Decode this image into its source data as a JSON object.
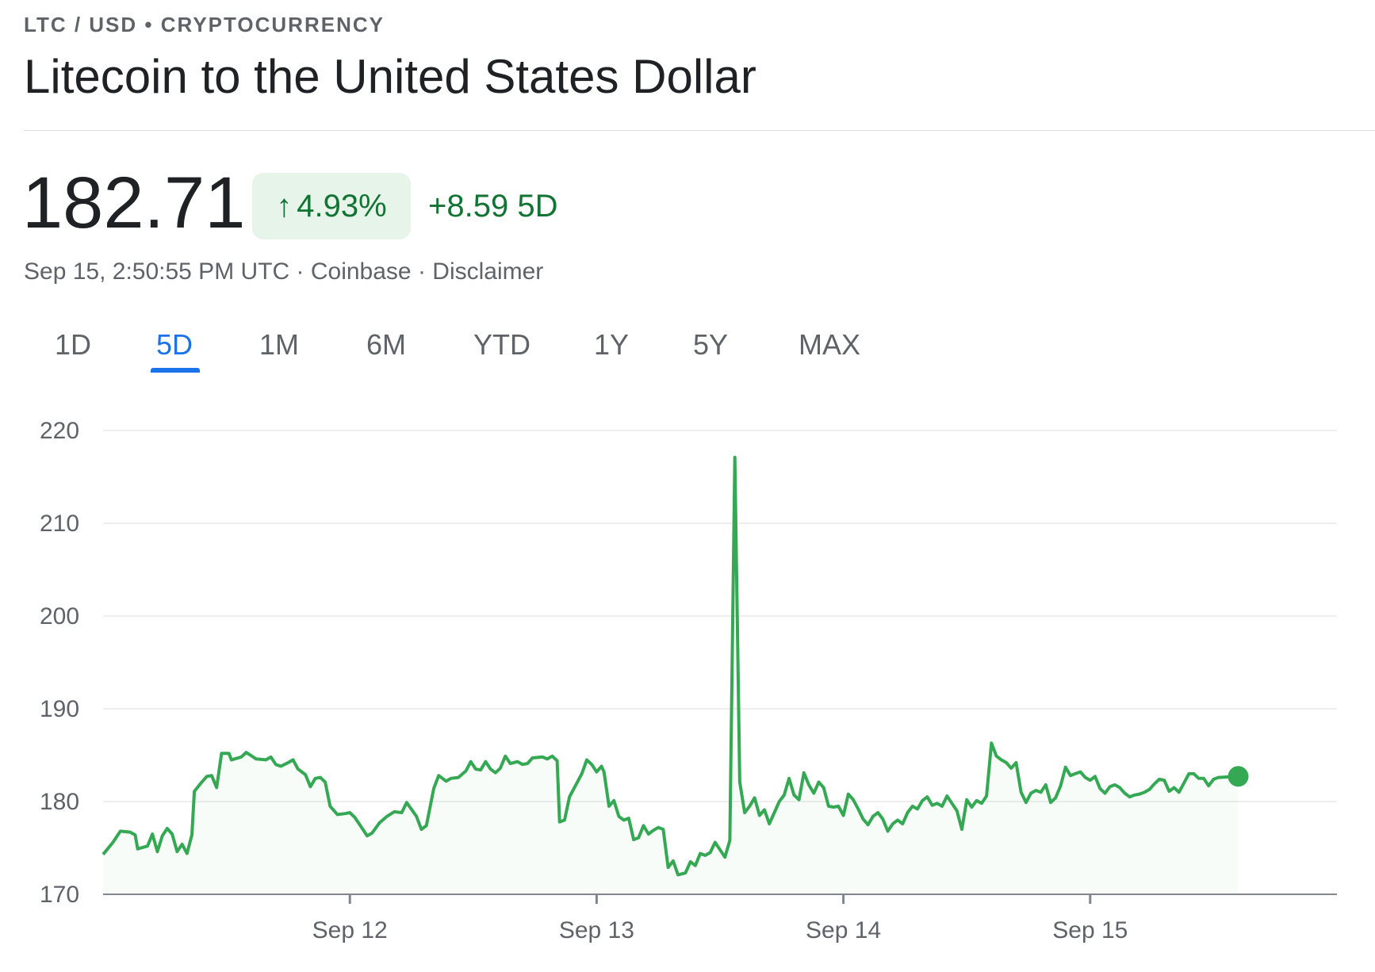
{
  "header": {
    "kicker": "LTC / USD • CRYPTOCURRENCY",
    "title": "Litecoin to the United States Dollar"
  },
  "quote": {
    "price": "182.71",
    "change_arrow": "↑",
    "change_percent": "4.93%",
    "change_abs": "+8.59 5D",
    "timestamp": "Sep 15, 2:50:55 PM UTC",
    "separator": " · ",
    "source": "Coinbase",
    "disclaimer": "Disclaimer"
  },
  "tabs": [
    "1D",
    "5D",
    "1M",
    "6M",
    "YTD",
    "1Y",
    "5Y",
    "MAX"
  ],
  "active_tab": "5D",
  "colors": {
    "line": "#34a853",
    "positive_text": "#137333",
    "pill_bg": "#e6f4ea",
    "active_tab": "#1a73e8",
    "grid": "#eeeeee"
  },
  "chart_data": {
    "type": "area",
    "title": "",
    "xlabel": "",
    "ylabel": "",
    "ylim": [
      170,
      220
    ],
    "yticks": [
      170,
      180,
      190,
      200,
      210,
      220
    ],
    "xlim": [
      0,
      5.0
    ],
    "xticks": [
      {
        "value": 1,
        "label": "Sep 12"
      },
      {
        "value": 2,
        "label": "Sep 13"
      },
      {
        "value": 3,
        "label": "Sep 14"
      },
      {
        "value": 4,
        "label": "Sep 15"
      }
    ],
    "grid": true,
    "series": [
      {
        "values": [
          [
            0.0,
            174.3
          ],
          [
            0.04,
            175.6
          ],
          [
            0.07,
            176.8
          ],
          [
            0.11,
            176.7
          ],
          [
            0.13,
            176.4
          ],
          [
            0.14,
            174.9
          ],
          [
            0.18,
            175.2
          ],
          [
            0.2,
            176.5
          ],
          [
            0.22,
            174.6
          ],
          [
            0.24,
            176.3
          ],
          [
            0.26,
            177.1
          ],
          [
            0.28,
            176.5
          ],
          [
            0.3,
            174.6
          ],
          [
            0.32,
            175.4
          ],
          [
            0.34,
            174.4
          ],
          [
            0.36,
            176.4
          ],
          [
            0.37,
            181.1
          ],
          [
            0.4,
            182.1
          ],
          [
            0.42,
            182.7
          ],
          [
            0.44,
            182.8
          ],
          [
            0.46,
            181.5
          ],
          [
            0.48,
            185.2
          ],
          [
            0.51,
            185.2
          ],
          [
            0.52,
            184.5
          ],
          [
            0.56,
            184.8
          ],
          [
            0.58,
            185.3
          ],
          [
            0.62,
            184.6
          ],
          [
            0.66,
            184.5
          ],
          [
            0.68,
            184.8
          ],
          [
            0.7,
            184.0
          ],
          [
            0.72,
            183.8
          ],
          [
            0.75,
            184.2
          ],
          [
            0.77,
            184.5
          ],
          [
            0.79,
            183.5
          ],
          [
            0.82,
            182.9
          ],
          [
            0.84,
            181.6
          ],
          [
            0.86,
            182.5
          ],
          [
            0.88,
            182.6
          ],
          [
            0.9,
            182.1
          ],
          [
            0.92,
            179.5
          ],
          [
            0.95,
            178.6
          ],
          [
            0.98,
            178.7
          ],
          [
            1.0,
            178.8
          ],
          [
            1.02,
            178.3
          ],
          [
            1.05,
            177.1
          ],
          [
            1.07,
            176.3
          ],
          [
            1.09,
            176.6
          ],
          [
            1.12,
            177.7
          ],
          [
            1.15,
            178.4
          ],
          [
            1.18,
            178.9
          ],
          [
            1.21,
            178.8
          ],
          [
            1.23,
            179.9
          ],
          [
            1.27,
            178.4
          ],
          [
            1.29,
            177.0
          ],
          [
            1.31,
            177.4
          ],
          [
            1.34,
            181.4
          ],
          [
            1.36,
            182.8
          ],
          [
            1.39,
            182.2
          ],
          [
            1.41,
            182.5
          ],
          [
            1.44,
            182.6
          ],
          [
            1.47,
            183.3
          ],
          [
            1.49,
            184.3
          ],
          [
            1.51,
            183.5
          ],
          [
            1.53,
            183.4
          ],
          [
            1.55,
            184.3
          ],
          [
            1.57,
            183.5
          ],
          [
            1.59,
            183.1
          ],
          [
            1.61,
            183.6
          ],
          [
            1.63,
            184.9
          ],
          [
            1.65,
            184.1
          ],
          [
            1.68,
            184.3
          ],
          [
            1.7,
            184.0
          ],
          [
            1.72,
            184.1
          ],
          [
            1.74,
            184.7
          ],
          [
            1.78,
            184.8
          ],
          [
            1.8,
            184.6
          ],
          [
            1.82,
            184.9
          ],
          [
            1.84,
            184.4
          ],
          [
            1.85,
            177.8
          ],
          [
            1.87,
            178.0
          ],
          [
            1.89,
            180.5
          ],
          [
            1.92,
            182.0
          ],
          [
            1.94,
            183.0
          ],
          [
            1.96,
            184.5
          ],
          [
            1.98,
            184.0
          ],
          [
            2.0,
            183.2
          ],
          [
            2.02,
            183.8
          ],
          [
            2.03,
            183.2
          ],
          [
            2.05,
            179.5
          ],
          [
            2.07,
            180.1
          ],
          [
            2.09,
            178.4
          ],
          [
            2.11,
            178.0
          ],
          [
            2.13,
            178.2
          ],
          [
            2.15,
            175.9
          ],
          [
            2.17,
            176.1
          ],
          [
            2.19,
            177.4
          ],
          [
            2.21,
            176.5
          ],
          [
            2.23,
            176.9
          ],
          [
            2.25,
            177.2
          ],
          [
            2.27,
            177.0
          ],
          [
            2.29,
            172.9
          ],
          [
            2.31,
            173.6
          ],
          [
            2.33,
            172.1
          ],
          [
            2.36,
            172.3
          ],
          [
            2.38,
            173.5
          ],
          [
            2.4,
            173.1
          ],
          [
            2.42,
            174.4
          ],
          [
            2.44,
            174.2
          ],
          [
            2.46,
            174.5
          ],
          [
            2.48,
            175.6
          ],
          [
            2.5,
            174.8
          ],
          [
            2.52,
            174.0
          ],
          [
            2.54,
            175.8
          ],
          [
            2.56,
            217.1
          ],
          [
            2.58,
            182.1
          ],
          [
            2.6,
            178.8
          ],
          [
            2.62,
            179.5
          ],
          [
            2.64,
            180.4
          ],
          [
            2.66,
            178.5
          ],
          [
            2.68,
            179.1
          ],
          [
            2.7,
            177.6
          ],
          [
            2.72,
            178.8
          ],
          [
            2.74,
            180.0
          ],
          [
            2.76,
            180.7
          ],
          [
            2.78,
            182.5
          ],
          [
            2.8,
            180.7
          ],
          [
            2.82,
            180.2
          ],
          [
            2.84,
            183.1
          ],
          [
            2.86,
            181.8
          ],
          [
            2.88,
            180.9
          ],
          [
            2.9,
            182.1
          ],
          [
            2.92,
            181.5
          ],
          [
            2.94,
            179.5
          ],
          [
            2.96,
            179.4
          ],
          [
            2.98,
            179.5
          ],
          [
            3.0,
            178.5
          ],
          [
            3.02,
            180.8
          ],
          [
            3.04,
            180.2
          ],
          [
            3.06,
            179.2
          ],
          [
            3.08,
            178.1
          ],
          [
            3.1,
            177.5
          ],
          [
            3.12,
            178.4
          ],
          [
            3.14,
            178.8
          ],
          [
            3.16,
            178.1
          ],
          [
            3.18,
            176.8
          ],
          [
            3.2,
            177.6
          ],
          [
            3.22,
            178.0
          ],
          [
            3.24,
            177.6
          ],
          [
            3.26,
            178.8
          ],
          [
            3.28,
            179.5
          ],
          [
            3.3,
            179.2
          ],
          [
            3.32,
            180.1
          ],
          [
            3.34,
            180.5
          ],
          [
            3.36,
            179.6
          ],
          [
            3.38,
            179.8
          ],
          [
            3.4,
            179.5
          ],
          [
            3.42,
            180.6
          ],
          [
            3.44,
            179.8
          ],
          [
            3.46,
            179.0
          ],
          [
            3.48,
            177.0
          ],
          [
            3.5,
            180.2
          ],
          [
            3.52,
            179.4
          ],
          [
            3.54,
            180.1
          ],
          [
            3.56,
            179.8
          ],
          [
            3.58,
            180.6
          ],
          [
            3.6,
            186.3
          ],
          [
            3.62,
            184.9
          ],
          [
            3.64,
            184.5
          ],
          [
            3.66,
            184.2
          ],
          [
            3.68,
            183.6
          ],
          [
            3.7,
            184.2
          ],
          [
            3.72,
            181.0
          ],
          [
            3.74,
            179.9
          ],
          [
            3.76,
            180.9
          ],
          [
            3.78,
            181.2
          ],
          [
            3.8,
            181.0
          ],
          [
            3.82,
            181.8
          ],
          [
            3.84,
            179.9
          ],
          [
            3.86,
            180.4
          ],
          [
            3.88,
            181.7
          ],
          [
            3.9,
            183.7
          ],
          [
            3.92,
            182.8
          ],
          [
            3.94,
            183.0
          ],
          [
            3.96,
            183.2
          ],
          [
            3.98,
            182.6
          ],
          [
            4.0,
            182.3
          ],
          [
            4.02,
            182.7
          ],
          [
            4.04,
            181.4
          ],
          [
            4.06,
            180.9
          ],
          [
            4.08,
            181.6
          ],
          [
            4.1,
            181.8
          ],
          [
            4.12,
            181.5
          ],
          [
            4.14,
            180.9
          ],
          [
            4.16,
            180.5
          ],
          [
            4.18,
            180.7
          ],
          [
            4.2,
            180.8
          ],
          [
            4.22,
            181.0
          ],
          [
            4.24,
            181.3
          ],
          [
            4.26,
            181.9
          ],
          [
            4.28,
            182.4
          ],
          [
            4.3,
            182.3
          ],
          [
            4.32,
            181.1
          ],
          [
            4.34,
            181.5
          ],
          [
            4.36,
            181.0
          ],
          [
            4.38,
            182.0
          ],
          [
            4.4,
            183.0
          ],
          [
            4.42,
            183.0
          ],
          [
            4.44,
            182.5
          ],
          [
            4.46,
            182.5
          ],
          [
            4.48,
            181.7
          ],
          [
            4.5,
            182.4
          ],
          [
            4.52,
            182.6
          ],
          [
            4.6,
            182.71
          ]
        ]
      }
    ]
  }
}
